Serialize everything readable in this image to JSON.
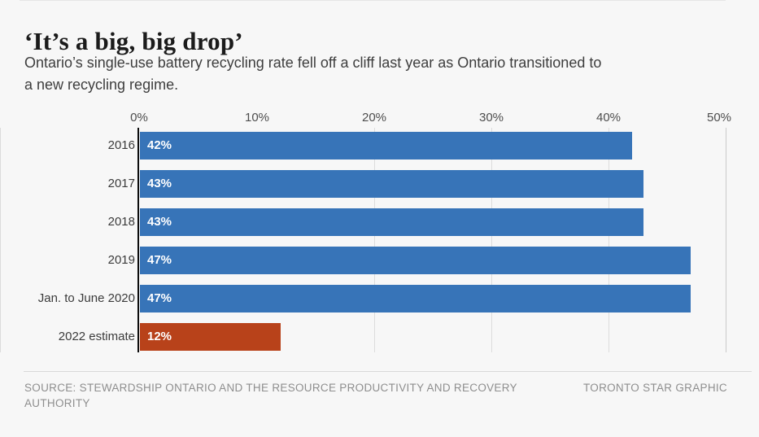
{
  "header": {
    "title": "‘It’s a big, big drop’",
    "subtitle_line1": "Ontario’s single-use battery recycling rate fell off a cliff last year as Ontario transitioned to",
    "subtitle_line2": "a new recycling regime."
  },
  "chart_data": {
    "type": "bar",
    "orientation": "horizontal",
    "title": "‘It’s a big, big drop’",
    "subtitle": "Ontario’s single-use battery recycling rate fell off a cliff last year as Ontario transitioned to a new recycling regime.",
    "categories": [
      "2016",
      "2017",
      "2018",
      "2019",
      "Jan. to June 2020",
      "2022 estimate"
    ],
    "values": [
      42,
      43,
      43,
      47,
      47,
      12
    ],
    "value_labels": [
      "42%",
      "43%",
      "43%",
      "47%",
      "47%",
      "12%"
    ],
    "bar_colors": [
      "#3774b8",
      "#3774b8",
      "#3774b8",
      "#3774b8",
      "#3774b8",
      "#b8421a"
    ],
    "axis_ticks": [
      "0%",
      "10%",
      "20%",
      "30%",
      "40%",
      "50%"
    ],
    "xlim": [
      0,
      50
    ],
    "xlabel": "",
    "ylabel": "",
    "grid": true,
    "legend": false,
    "colors": {
      "default_bar": "#3774b8",
      "highlight_bar": "#b8421a",
      "background": "#f7f7f7",
      "axis_line": "#0d0d0d",
      "gridline": "#dcdcdc"
    }
  },
  "footer": {
    "source": "SOURCE: STEWARDSHIP ONTARIO AND THE RESOURCE PRODUCTIVITY AND RECOVERY AUTHORITY",
    "credit": "TORONTO STAR GRAPHIC"
  }
}
